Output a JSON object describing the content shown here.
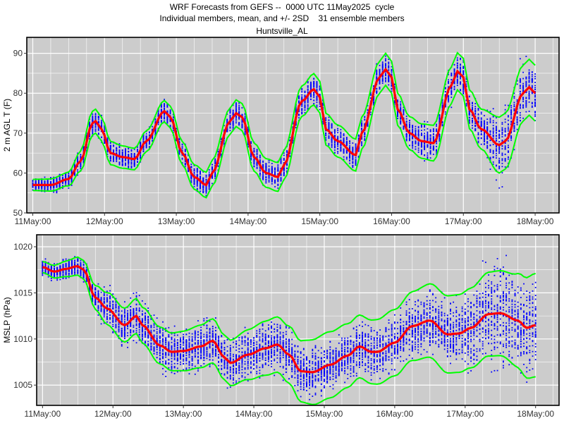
{
  "header": {
    "line1": "WRF Forecasts from GEFS --  0000 UTC 11May2025  cycle",
    "line2": "Individual members, mean, and +/- 2SD    31 ensemble members",
    "line3": "Huntsville_AL"
  },
  "colors": {
    "panel_bg": "#cccccc",
    "grid": "#ffffff",
    "members": "#0000ff",
    "mean": "#ff0000",
    "sd_band": "#00ff00"
  },
  "chart_data": [
    {
      "type": "line",
      "ylabel": "2 m AGL T (F)",
      "ylim": [
        50,
        94
      ],
      "yticks": [
        50,
        60,
        70,
        80,
        90
      ],
      "xticks": [
        {
          "label": "11May:00",
          "hour": 0
        },
        {
          "label": "12May:00",
          "hour": 24
        },
        {
          "label": "13May:00",
          "hour": 48
        },
        {
          "label": "14May:00",
          "hour": 72
        },
        {
          "label": "15May:00",
          "hour": 96
        },
        {
          "label": "16May:00",
          "hour": 120
        },
        {
          "label": "17May:00",
          "hour": 144
        },
        {
          "label": "18May:00",
          "hour": 168
        }
      ],
      "xlim": [
        -2,
        176
      ],
      "grid": true,
      "mean_keypoints": [
        [
          0,
          57
        ],
        [
          6,
          57
        ],
        [
          12,
          58.5
        ],
        [
          16,
          63
        ],
        [
          20,
          72.5
        ],
        [
          21,
          73
        ],
        [
          23,
          71
        ],
        [
          26,
          65
        ],
        [
          30,
          64
        ],
        [
          34,
          63.5
        ],
        [
          38,
          68
        ],
        [
          44,
          75.5
        ],
        [
          46,
          74
        ],
        [
          50,
          65
        ],
        [
          54,
          59
        ],
        [
          58,
          57
        ],
        [
          60,
          60
        ],
        [
          66,
          73
        ],
        [
          68,
          75
        ],
        [
          70,
          74
        ],
        [
          74,
          64
        ],
        [
          78,
          60
        ],
        [
          82,
          59
        ],
        [
          84,
          62
        ],
        [
          90,
          78
        ],
        [
          94,
          81
        ],
        [
          96,
          79
        ],
        [
          98,
          71
        ],
        [
          102,
          68
        ],
        [
          108,
          64.5
        ],
        [
          110,
          70
        ],
        [
          116,
          84
        ],
        [
          118,
          86
        ],
        [
          120,
          84
        ],
        [
          122,
          76
        ],
        [
          126,
          70
        ],
        [
          130,
          68
        ],
        [
          134,
          67.5
        ],
        [
          140,
          82
        ],
        [
          142,
          85.5
        ],
        [
          144,
          84
        ],
        [
          146,
          76
        ],
        [
          150,
          71
        ],
        [
          156,
          67
        ],
        [
          158,
          68
        ],
        [
          164,
          80
        ],
        [
          166,
          81.5
        ],
        [
          168,
          80
        ]
      ],
      "sd_keypoints": [
        [
          0,
          0.7
        ],
        [
          10,
          0.8
        ],
        [
          20,
          1.5
        ],
        [
          40,
          1.3
        ],
        [
          60,
          1.6
        ],
        [
          80,
          1.8
        ],
        [
          100,
          2
        ],
        [
          120,
          2
        ],
        [
          140,
          2.3
        ],
        [
          150,
          2.5
        ],
        [
          156,
          3.5
        ],
        [
          168,
          3.5
        ]
      ],
      "member_spread_keypoints": [
        [
          0,
          2
        ],
        [
          10,
          2.5
        ],
        [
          20,
          4
        ],
        [
          40,
          3.5
        ],
        [
          60,
          4
        ],
        [
          80,
          4.5
        ],
        [
          100,
          5
        ],
        [
          120,
          5
        ],
        [
          140,
          6
        ],
        [
          150,
          6
        ],
        [
          156,
          13
        ],
        [
          168,
          8
        ]
      ]
    },
    {
      "type": "line",
      "ylabel": "MSLP (hPa)",
      "ylim": [
        1002.8,
        1021.3
      ],
      "yticks": [
        1005,
        1010,
        1015,
        1020
      ],
      "xticks": [
        {
          "label": "11May:00",
          "hour": 0
        },
        {
          "label": "12May:00",
          "hour": 24
        },
        {
          "label": "13May:00",
          "hour": 48
        },
        {
          "label": "14May:00",
          "hour": 72
        },
        {
          "label": "15May:00",
          "hour": 96
        },
        {
          "label": "16May:00",
          "hour": 120
        },
        {
          "label": "17May:00",
          "hour": 144
        },
        {
          "label": "18May:00",
          "hour": 168
        }
      ],
      "xlim": [
        -2,
        176
      ],
      "grid": true,
      "mean_keypoints": [
        [
          0,
          1017.8
        ],
        [
          4,
          1017.3
        ],
        [
          8,
          1017.6
        ],
        [
          12,
          1017.9
        ],
        [
          14,
          1017.5
        ],
        [
          18,
          1014.5
        ],
        [
          22,
          1013.3
        ],
        [
          28,
          1011.5
        ],
        [
          32,
          1012.5
        ],
        [
          34,
          1011.5
        ],
        [
          40,
          1009.3
        ],
        [
          44,
          1008.6
        ],
        [
          48,
          1008.7
        ],
        [
          54,
          1009.2
        ],
        [
          58,
          1009.8
        ],
        [
          62,
          1008.0
        ],
        [
          64,
          1007.4
        ],
        [
          70,
          1008.3
        ],
        [
          76,
          1009.0
        ],
        [
          80,
          1009.4
        ],
        [
          84,
          1008.3
        ],
        [
          88,
          1006.5
        ],
        [
          92,
          1006.4
        ],
        [
          98,
          1007.2
        ],
        [
          104,
          1008.2
        ],
        [
          108,
          1009.2
        ],
        [
          112,
          1008.6
        ],
        [
          114,
          1008.6
        ],
        [
          120,
          1009.6
        ],
        [
          126,
          1011.4
        ],
        [
          132,
          1012.0
        ],
        [
          138,
          1010.5
        ],
        [
          142,
          1010.6
        ],
        [
          146,
          1011.2
        ],
        [
          152,
          1012.7
        ],
        [
          156,
          1012.8
        ],
        [
          162,
          1012.0
        ],
        [
          165,
          1011.2
        ],
        [
          168,
          1011.5
        ]
      ],
      "sd_keypoints": [
        [
          0,
          0.3
        ],
        [
          14,
          0.5
        ],
        [
          24,
          0.9
        ],
        [
          40,
          1.0
        ],
        [
          60,
          1.2
        ],
        [
          80,
          1.5
        ],
        [
          96,
          1.8
        ],
        [
          108,
          1.7
        ],
        [
          120,
          1.8
        ],
        [
          140,
          2.1
        ],
        [
          156,
          2.3
        ],
        [
          168,
          2.8
        ]
      ],
      "member_spread_keypoints": [
        [
          0,
          1.2
        ],
        [
          14,
          1.5
        ],
        [
          24,
          3
        ],
        [
          40,
          3.5
        ],
        [
          60,
          3.5
        ],
        [
          80,
          3.5
        ],
        [
          96,
          3.5
        ],
        [
          120,
          4
        ],
        [
          140,
          4.5
        ],
        [
          156,
          8
        ],
        [
          168,
          6
        ]
      ]
    }
  ]
}
